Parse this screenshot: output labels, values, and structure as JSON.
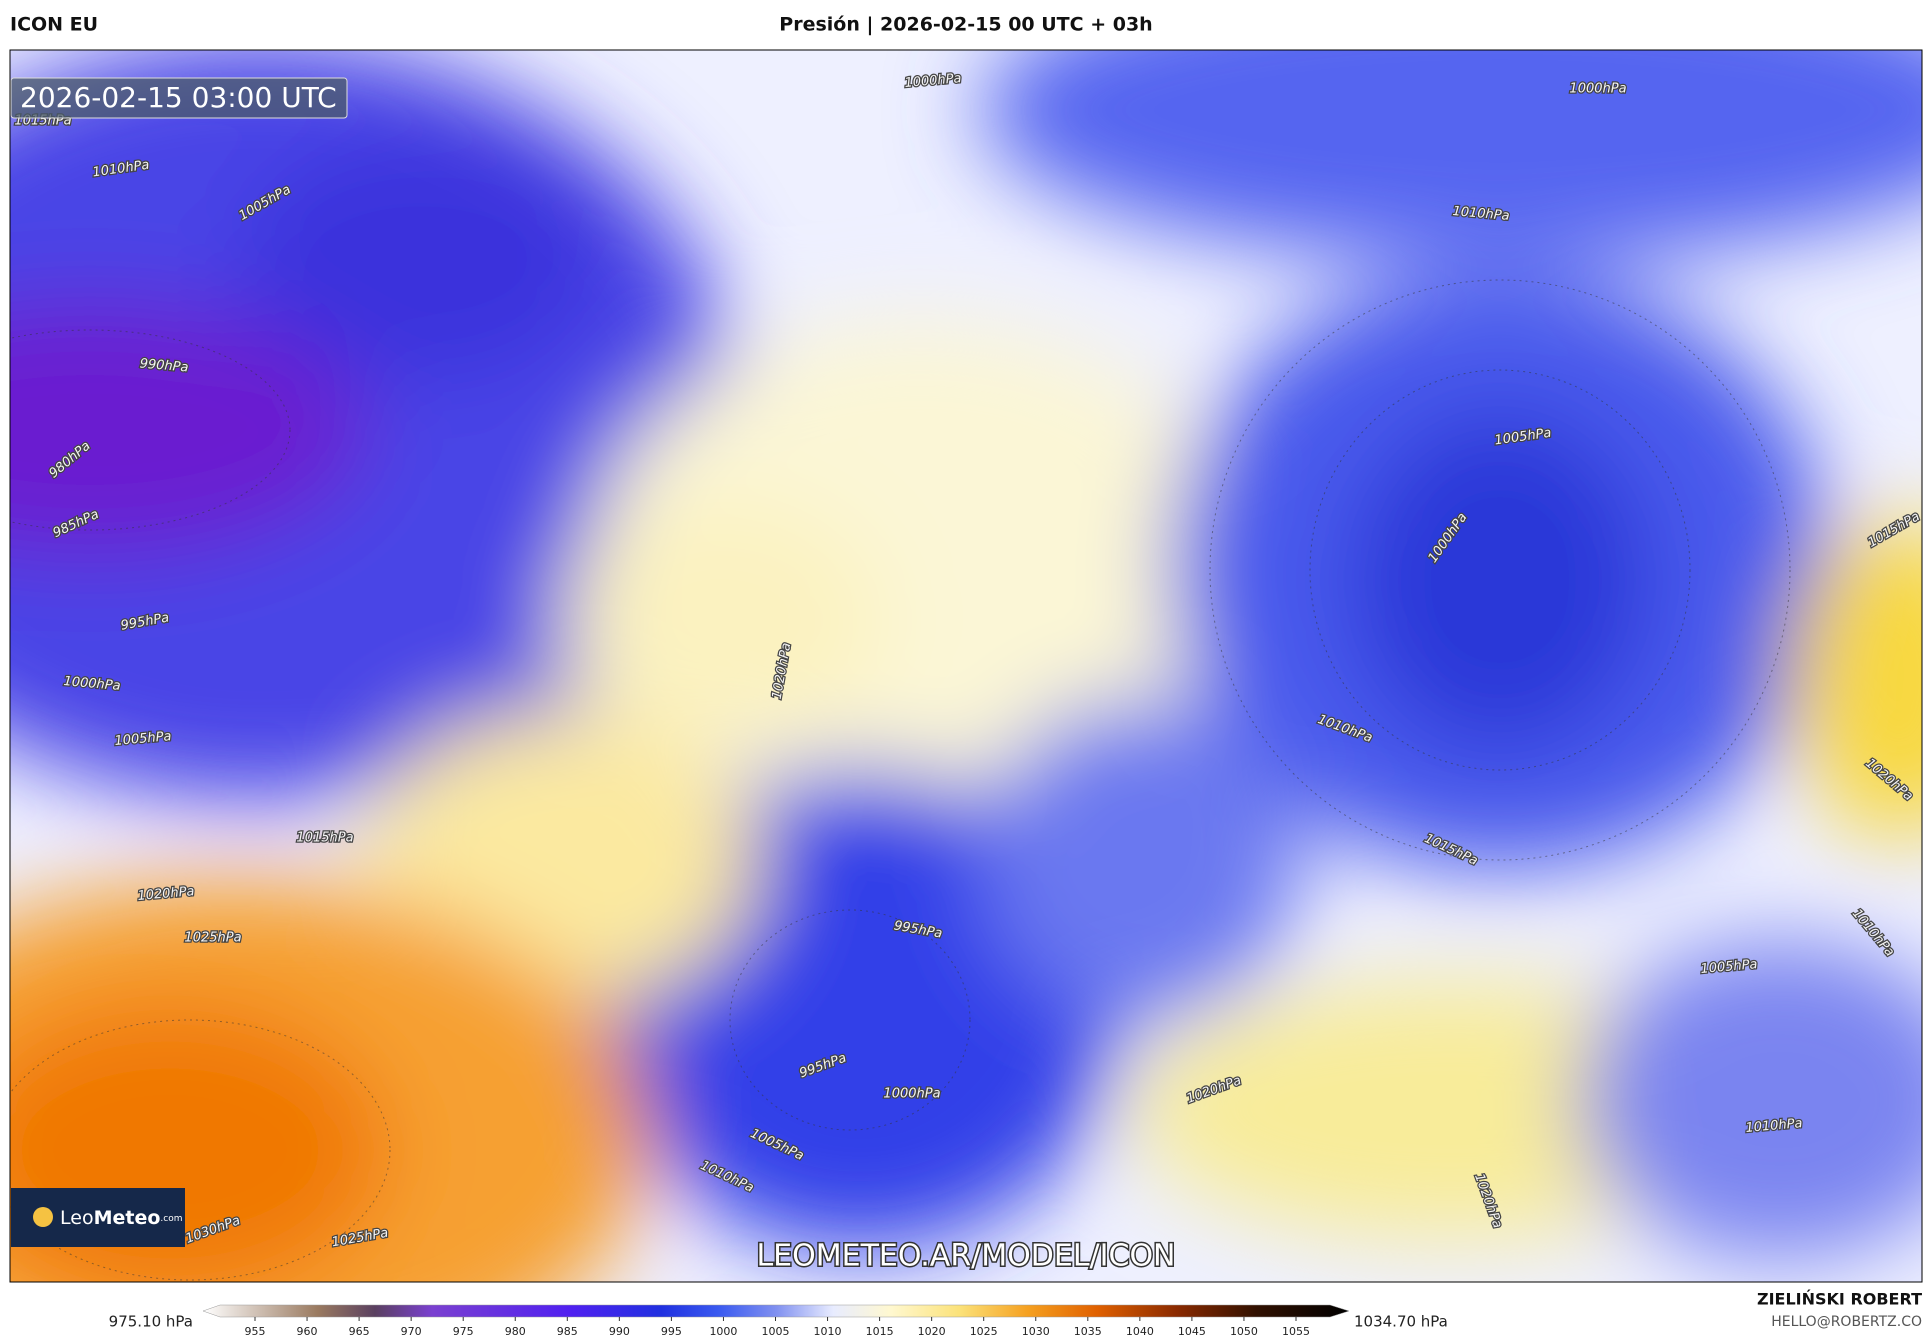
{
  "header": {
    "model": "ICON EU",
    "title": "Presión | 2026-02-15 00 UTC + 03h"
  },
  "map": {
    "timestamp": "2026-02-15 03:00 UTC",
    "watermark": "LEOMETEO.AR/MODEL/ICON",
    "logo": {
      "leo": "Leo",
      "meteo": "Meteo",
      "suffix": ".com"
    },
    "isobar_labels": [
      "1015hPa",
      "1010hPa",
      "1005hPa",
      "990hPa",
      "980hPa",
      "985hPa",
      "995hPa",
      "1000hPa",
      "1005hPa",
      "1015hPa",
      "1020hPa",
      "1025hPa",
      "1000hPa",
      "1000hPa",
      "1010hPa",
      "1005hPa",
      "1000hPa",
      "1015hPa",
      "1020hPa",
      "1010hPa",
      "1020hPa",
      "1015hPa",
      "1010hPa",
      "995hPa",
      "1005hPa",
      "995hPa",
      "1000hPa",
      "1020hPa",
      "1005hPa",
      "1010hPa",
      "1010hPa",
      "1030hPa",
      "1025hPa",
      "1020hPa"
    ]
  },
  "colorbar": {
    "min_label": "975.10 hPa",
    "max_label": "1034.70 hPa",
    "ticks": [
      955,
      960,
      965,
      970,
      975,
      980,
      985,
      990,
      995,
      1000,
      1005,
      1010,
      1015,
      1020,
      1025,
      1030,
      1035,
      1040,
      1045,
      1050,
      1055
    ]
  },
  "credits": {
    "author": "ZIELIŃSKI ROBERT",
    "email": "HELLO@ROBERTZ.CO"
  }
}
